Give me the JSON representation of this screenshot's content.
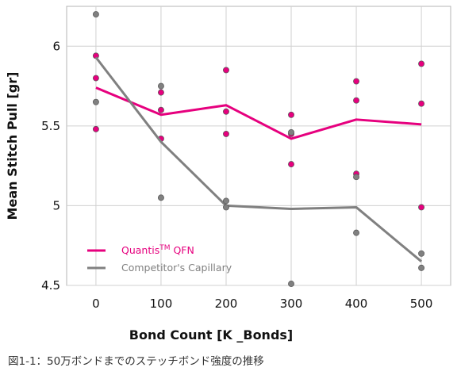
{
  "chart_data": {
    "type": "scatter",
    "xlabel": "Bond Count [K _Bonds]",
    "ylabel": "Mean Stitch Pull [gr]",
    "x_ticks": [
      0,
      100,
      200,
      300,
      400,
      500
    ],
    "y_ticks": [
      4.5,
      5,
      5.5,
      6
    ],
    "xlim": [
      -45,
      545
    ],
    "ylim": [
      4.5,
      6.25
    ],
    "grid": true,
    "legend_position": "bottom-left",
    "series": [
      {
        "name": "Quantis",
        "name_sup": "TM",
        "name_suffix": " QFN",
        "color": "#e6007e",
        "mean_x": [
          0,
          100,
          200,
          300,
          400,
          500
        ],
        "mean_y": [
          5.74,
          5.57,
          5.63,
          5.42,
          5.54,
          5.51
        ],
        "points": [
          [
            0,
            5.94
          ],
          [
            0,
            5.8
          ],
          [
            0,
            5.48
          ],
          [
            100,
            5.71
          ],
          [
            100,
            5.6
          ],
          [
            100,
            5.42
          ],
          [
            200,
            5.85
          ],
          [
            200,
            5.59
          ],
          [
            200,
            5.45
          ],
          [
            300,
            5.57
          ],
          [
            300,
            5.45
          ],
          [
            300,
            5.26
          ],
          [
            400,
            5.78
          ],
          [
            400,
            5.66
          ],
          [
            400,
            5.2
          ],
          [
            500,
            5.89
          ],
          [
            500,
            5.64
          ],
          [
            500,
            4.99
          ]
        ]
      },
      {
        "name": "Competitor's Capillary",
        "color": "#808080",
        "mean_x": [
          0,
          100,
          200,
          300,
          400,
          500
        ],
        "mean_y": [
          5.93,
          5.4,
          5.0,
          4.98,
          4.99,
          4.65
        ],
        "points": [
          [
            0,
            6.2
          ],
          [
            0,
            5.65
          ],
          [
            100,
            5.75
          ],
          [
            100,
            5.05
          ],
          [
            200,
            5.03
          ],
          [
            200,
            4.99
          ],
          [
            300,
            5.46
          ],
          [
            300,
            4.51
          ],
          [
            400,
            5.18
          ],
          [
            400,
            4.83
          ],
          [
            500,
            4.7
          ],
          [
            500,
            4.61
          ]
        ]
      }
    ]
  },
  "caption": "図1-1：50万ボンドまでのステッチボンド強度の推移"
}
